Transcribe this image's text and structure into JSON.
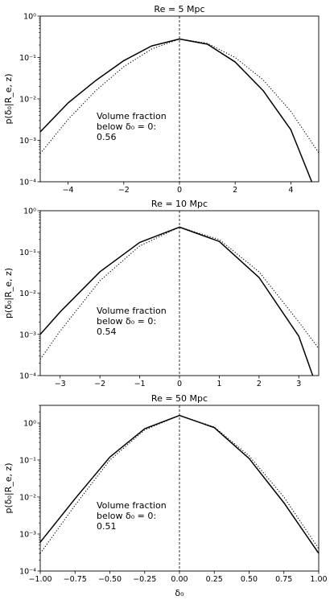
{
  "chart_data": [
    {
      "type": "line",
      "title": "Re = 5 Mpc",
      "ylabel": "p(δ₀|R_e, z)",
      "xlabel": "",
      "yscale": "log",
      "xlim": [
        -5,
        5
      ],
      "ylim": [
        0.0001,
        1
      ],
      "x_ticks": [
        -4,
        -2,
        0,
        2,
        4
      ],
      "x_tick_labels": [
        "−4",
        "−2",
        "0",
        "2",
        "4"
      ],
      "y_tick_labels": [
        "10⁰",
        "10⁻¹",
        "10⁻²",
        "10⁻³",
        "10⁻⁴"
      ],
      "vertical_line_x": 0,
      "annotation": [
        "Volume fraction",
        "below δ₀ = 0:",
        "0.56"
      ],
      "series": [
        {
          "style": "solid",
          "x": [
            -5,
            -4,
            -3,
            -2,
            -1,
            0,
            1,
            2,
            3,
            4,
            4.75
          ],
          "y": [
            0.0016,
            0.008,
            0.028,
            0.084,
            0.19,
            0.28,
            0.21,
            0.078,
            0.016,
            0.0018,
            0.0001
          ]
        },
        {
          "style": "dotted",
          "x": [
            -5,
            -4,
            -3,
            -2,
            -1,
            0,
            1,
            2,
            3,
            4,
            5
          ],
          "y": [
            0.00048,
            0.0032,
            0.016,
            0.06,
            0.16,
            0.28,
            0.22,
            0.1,
            0.029,
            0.005,
            0.0005
          ]
        }
      ]
    },
    {
      "type": "line",
      "title": "Re = 10 Mpc",
      "ylabel": "p(δ₀|R_e, z)",
      "xlabel": "",
      "yscale": "log",
      "xlim": [
        -3.5,
        3.5
      ],
      "ylim": [
        0.0001,
        1
      ],
      "x_ticks": [
        -3,
        -2,
        -1,
        0,
        1,
        2,
        3
      ],
      "x_tick_labels": [
        "−3",
        "−2",
        "−1",
        "0",
        "1",
        "2",
        "3"
      ],
      "y_tick_labels": [
        "10⁰",
        "10⁻¹",
        "10⁻²",
        "10⁻³",
        "10⁻⁴"
      ],
      "vertical_line_x": 0,
      "annotation": [
        "Volume fraction",
        "below δ₀ = 0:",
        "0.54"
      ],
      "series": [
        {
          "style": "solid",
          "x": [
            -3.5,
            -3,
            -2,
            -1,
            0,
            1,
            2,
            3,
            3.35
          ],
          "y": [
            0.001,
            0.0035,
            0.033,
            0.17,
            0.4,
            0.18,
            0.024,
            0.0009,
            0.0001
          ]
        },
        {
          "style": "dotted",
          "x": [
            -3.5,
            -3,
            -2,
            -1,
            0,
            1,
            2,
            3,
            3.5
          ],
          "y": [
            0.00025,
            0.0012,
            0.02,
            0.14,
            0.4,
            0.2,
            0.033,
            0.002,
            0.00045
          ]
        }
      ]
    },
    {
      "type": "line",
      "title": "Re = 50 Mpc",
      "ylabel": "p(δ₀|R_e, z)",
      "xlabel": "δ₀",
      "yscale": "log",
      "xlim": [
        -1,
        1
      ],
      "ylim": [
        0.0001,
        3
      ],
      "x_ticks": [
        -1,
        -0.75,
        -0.5,
        -0.25,
        0,
        0.25,
        0.5,
        0.75,
        1
      ],
      "x_tick_labels": [
        "−1.00",
        "−0.75",
        "−0.50",
        "−0.25",
        "0.00",
        "0.25",
        "0.50",
        "0.75",
        "1.00"
      ],
      "y_tick_labels": [
        "10⁰",
        "10⁻¹",
        "10⁻²",
        "10⁻³",
        "10⁻⁴"
      ],
      "vertical_line_x": 0,
      "annotation": [
        "Volume fraction",
        "below δ₀ = 0:",
        "0.51"
      ],
      "series": [
        {
          "style": "solid",
          "x": [
            -1,
            -0.75,
            -0.5,
            -0.25,
            0,
            0.25,
            0.5,
            0.75,
            1
          ],
          "y": [
            0.0006,
            0.009,
            0.12,
            0.7,
            1.6,
            0.75,
            0.11,
            0.007,
            0.0003
          ]
        },
        {
          "style": "dotted",
          "x": [
            -1,
            -0.75,
            -0.5,
            -0.25,
            0,
            0.25,
            0.5,
            0.75,
            1
          ],
          "y": [
            0.0003,
            0.006,
            0.1,
            0.65,
            1.6,
            0.78,
            0.13,
            0.01,
            0.0004
          ]
        }
      ]
    }
  ]
}
